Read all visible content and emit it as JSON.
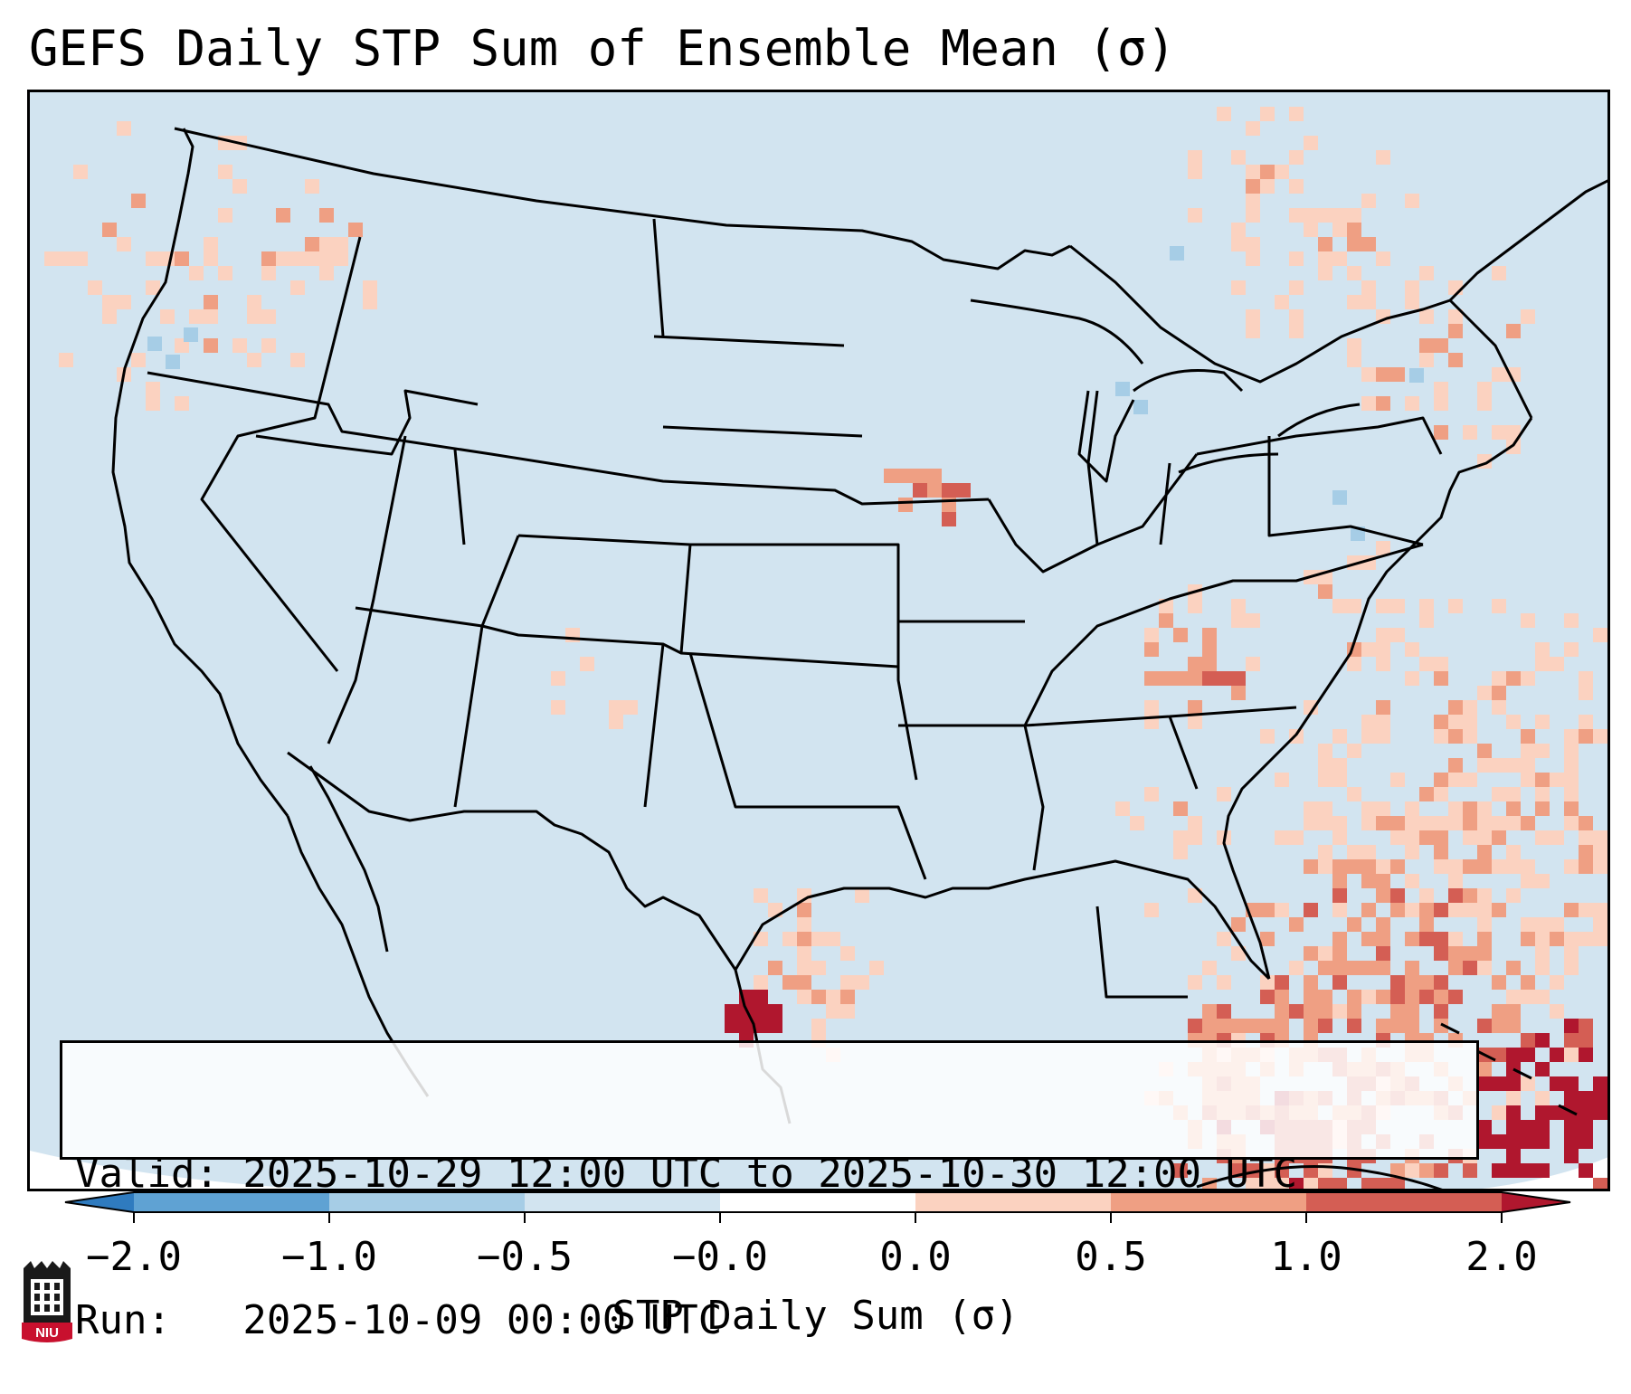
{
  "title": "GEFS Daily STP Sum of Ensemble Mean (σ)",
  "info": {
    "valid_line": "Valid: 2025-10-29 12:00 UTC to 2025-10-30 12:00 UTC",
    "run_line": "Run:   2025-10-09 00:00 UTC"
  },
  "colorbar": {
    "label": "STP Daily Sum (σ)",
    "ticks": [
      "−2.0",
      "−1.0",
      "−0.5",
      "−0.0",
      "0.0",
      "0.5",
      "1.0",
      "2.0"
    ],
    "colors": [
      "#2f7bbf",
      "#5fa2d3",
      "#a6cde6",
      "#d2e4f0",
      "#ffffff",
      "#fbd2c0",
      "#ef9f83",
      "#d45e54",
      "#b0172e"
    ]
  },
  "logo": {
    "text": "NIU",
    "icon": "niu-logo-icon"
  },
  "map_icons": [
    "us-state-boundaries-icon",
    "stp-anomaly-grid-icon"
  ],
  "anomaly_regions": [
    {
      "name": "gulf-stream-atlantic",
      "category": "0.5 to 1.0"
    },
    {
      "name": "cuba-caribbean",
      "category": "above 2.0"
    },
    {
      "name": "south-texas",
      "category": "1.0 to 2.0"
    },
    {
      "name": "ohio-valley",
      "category": "1.0 to 2.0"
    },
    {
      "name": "iowa",
      "category": "1.0 to 2.0"
    }
  ]
}
